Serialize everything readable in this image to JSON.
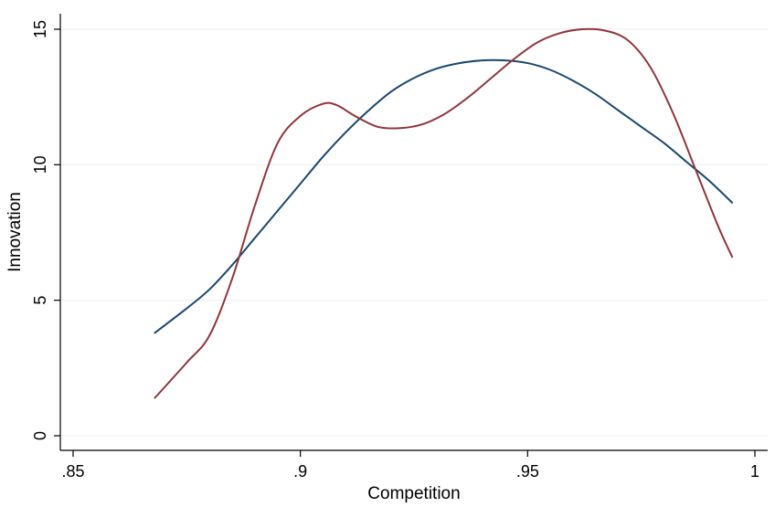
{
  "chart_data": {
    "type": "line",
    "xlabel": "Competition",
    "ylabel": "Innovation",
    "xlim": [
      0.85,
      1.0
    ],
    "ylim": [
      0,
      15
    ],
    "x_ticks": [
      0.85,
      0.9,
      0.95,
      1.0
    ],
    "x_tick_labels": [
      ".85",
      ".9",
      ".95",
      "1"
    ],
    "y_ticks": [
      0,
      5,
      10,
      15
    ],
    "y_tick_labels": [
      "0",
      "5",
      "10",
      "15"
    ],
    "grid": true,
    "series": [
      {
        "color": "#1a476f",
        "x": [
          0.868,
          0.875,
          0.88,
          0.885,
          0.89,
          0.895,
          0.9,
          0.905,
          0.91,
          0.915,
          0.92,
          0.925,
          0.93,
          0.935,
          0.94,
          0.945,
          0.95,
          0.955,
          0.96,
          0.965,
          0.97,
          0.975,
          0.98,
          0.985,
          0.99,
          0.995
        ],
        "y": [
          3.8,
          4.7,
          5.4,
          6.3,
          7.3,
          8.3,
          9.3,
          10.3,
          11.2,
          12.0,
          12.7,
          13.2,
          13.55,
          13.75,
          13.85,
          13.85,
          13.75,
          13.5,
          13.1,
          12.6,
          12.0,
          11.4,
          10.8,
          10.1,
          9.4,
          8.6
        ]
      },
      {
        "color": "#90353b",
        "x": [
          0.868,
          0.875,
          0.88,
          0.885,
          0.89,
          0.895,
          0.9,
          0.905,
          0.908,
          0.912,
          0.917,
          0.922,
          0.927,
          0.932,
          0.937,
          0.942,
          0.947,
          0.952,
          0.957,
          0.962,
          0.967,
          0.972,
          0.977,
          0.982,
          0.987,
          0.992,
          0.995
        ],
        "y": [
          1.4,
          2.7,
          3.7,
          5.8,
          8.5,
          10.8,
          11.8,
          12.25,
          12.2,
          11.8,
          11.4,
          11.35,
          11.5,
          11.9,
          12.5,
          13.2,
          13.9,
          14.5,
          14.85,
          15.0,
          14.95,
          14.6,
          13.6,
          11.9,
          9.8,
          7.7,
          6.6
        ]
      }
    ]
  }
}
